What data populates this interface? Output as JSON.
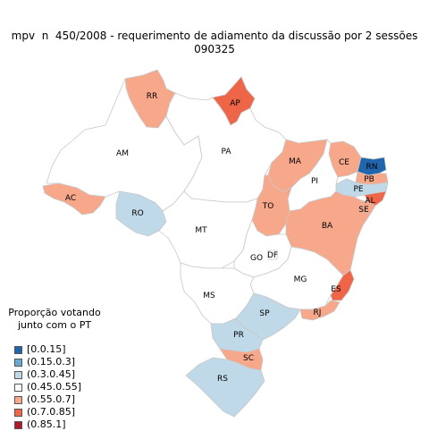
{
  "title": {
    "line1": "mpv  n  450/2008 - requerimento de adiamento da discussão por 2 sessões",
    "line2": "090325"
  },
  "legend": {
    "title_line1": "Proporção votando",
    "title_line2": "junto com o PT",
    "items": [
      {
        "label": "[0.0.15]",
        "color": "#2166ac"
      },
      {
        "label": "(0.15.0.3]",
        "color": "#67a9cf"
      },
      {
        "label": "(0.3.0.45]",
        "color": "#c0d9e8"
      },
      {
        "label": "(0.45.0.55]",
        "color": "#ffffff"
      },
      {
        "label": "(0.55.0.7]",
        "color": "#f7a88a"
      },
      {
        "label": "(0.7.0.85]",
        "color": "#ef6548"
      },
      {
        "label": "(0.85.1]",
        "color": "#b2182b"
      }
    ]
  },
  "states": [
    {
      "code": "RR",
      "bin": 4
    },
    {
      "code": "AP",
      "bin": 5
    },
    {
      "code": "AM",
      "bin": 3
    },
    {
      "code": "PA",
      "bin": 3
    },
    {
      "code": "MA",
      "bin": 4
    },
    {
      "code": "CE",
      "bin": 4
    },
    {
      "code": "RN",
      "bin": 0
    },
    {
      "code": "PB",
      "bin": 4
    },
    {
      "code": "PE",
      "bin": 2
    },
    {
      "code": "AL",
      "bin": 5
    },
    {
      "code": "SE",
      "bin": 4
    },
    {
      "code": "PI",
      "bin": 3
    },
    {
      "code": "AC",
      "bin": 4
    },
    {
      "code": "RO",
      "bin": 2
    },
    {
      "code": "TO",
      "bin": 4
    },
    {
      "code": "BA",
      "bin": 4
    },
    {
      "code": "MT",
      "bin": 3
    },
    {
      "code": "GO",
      "bin": 3
    },
    {
      "code": "DF",
      "bin": 3
    },
    {
      "code": "MG",
      "bin": 3
    },
    {
      "code": "ES",
      "bin": 5
    },
    {
      "code": "MS",
      "bin": 3
    },
    {
      "code": "SP",
      "bin": 2
    },
    {
      "code": "RJ",
      "bin": 4
    },
    {
      "code": "PR",
      "bin": 2
    },
    {
      "code": "SC",
      "bin": 4
    },
    {
      "code": "RS",
      "bin": 2
    }
  ]
}
